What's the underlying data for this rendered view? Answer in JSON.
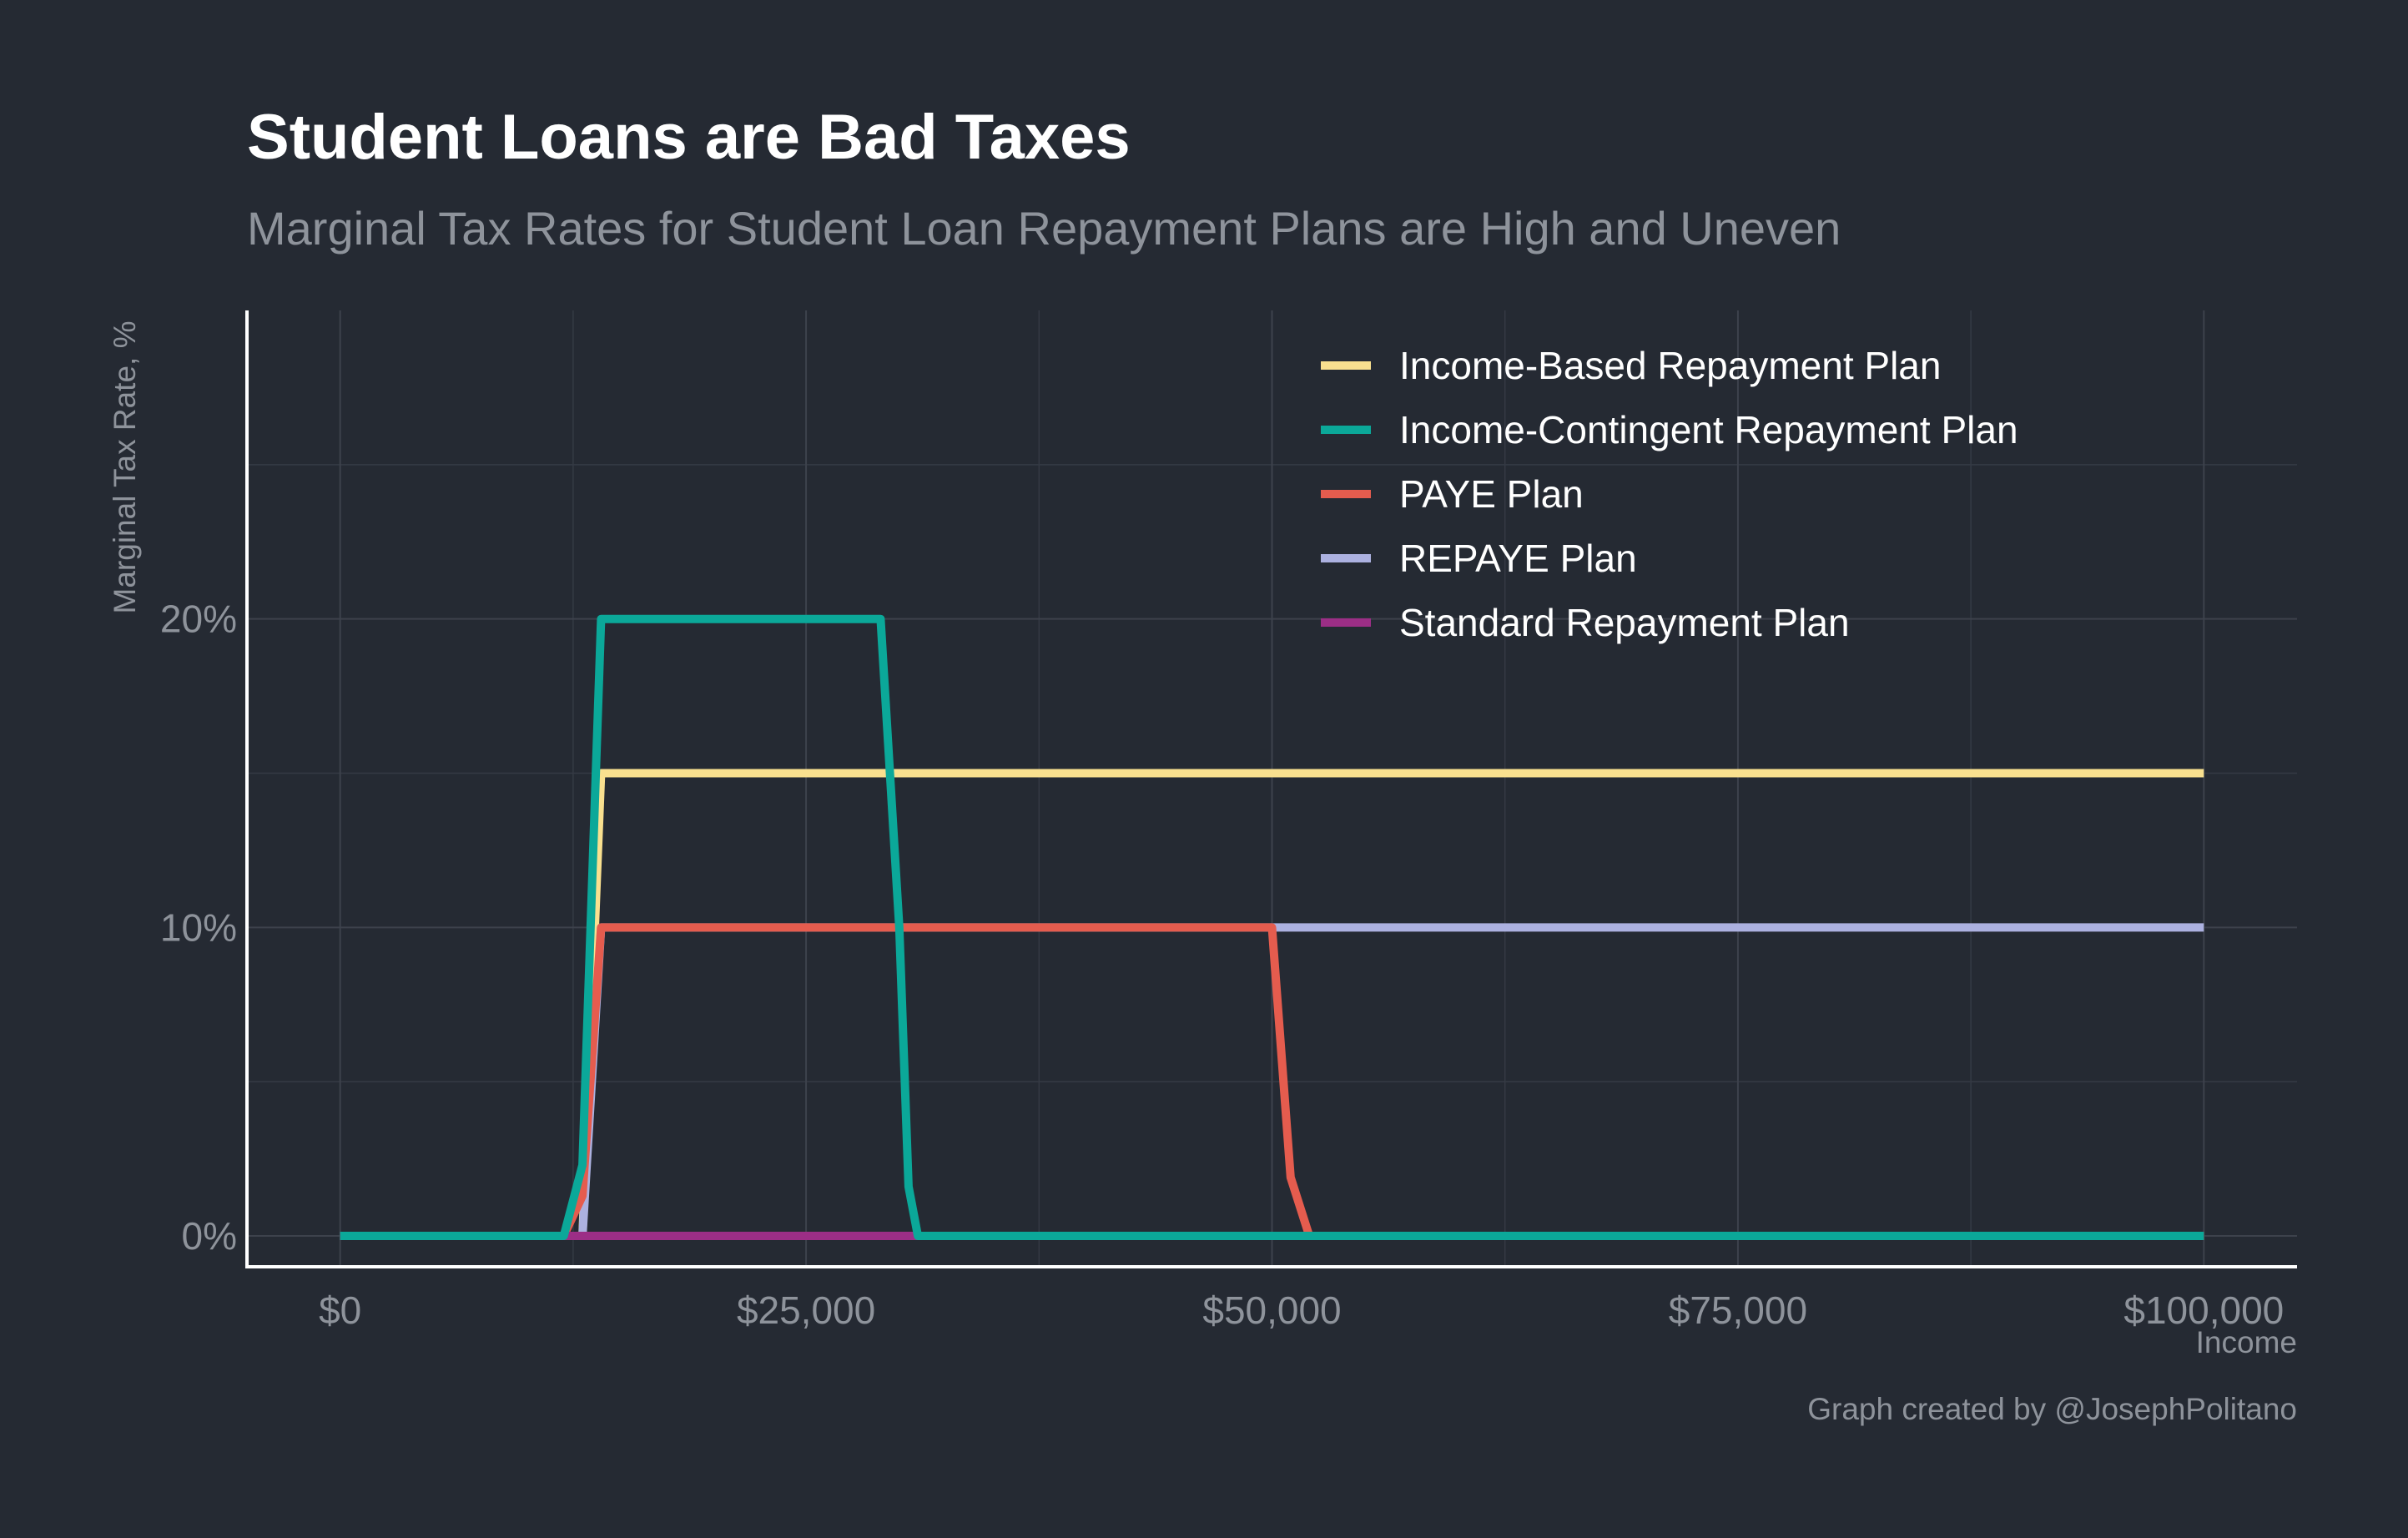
{
  "chart_data": {
    "type": "line",
    "title": "Student Loans are Bad Taxes",
    "subtitle": "Marginal Tax Rates for Student Loan Repayment Plans are High and Uneven",
    "xlabel": "Income",
    "ylabel": "Marginal Tax Rate, %",
    "caption": "Graph created by @JosephPolitano",
    "xlim": [
      -5000,
      105000
    ],
    "ylim": [
      -1,
      30
    ],
    "x_ticks": [
      {
        "value": 0,
        "label": "$0"
      },
      {
        "value": 25000,
        "label": "$25,000"
      },
      {
        "value": 50000,
        "label": "$50,000"
      },
      {
        "value": 75000,
        "label": "$75,000"
      },
      {
        "value": 100000,
        "label": "$100,000"
      }
    ],
    "y_ticks": [
      {
        "value": 0,
        "label": "0%"
      },
      {
        "value": 10,
        "label": "10%"
      },
      {
        "value": 20,
        "label": "20%"
      }
    ],
    "x_minor_grid": [
      12500,
      37500,
      62500,
      87500
    ],
    "y_minor_grid": [
      5,
      15,
      25
    ],
    "grid": true,
    "legend_position": "top-right",
    "series": [
      {
        "name": "Income-Based Repayment Plan",
        "color": "#f9e08f",
        "points": [
          [
            0,
            0
          ],
          [
            12000,
            0
          ],
          [
            13000,
            0
          ],
          [
            14000,
            15
          ],
          [
            100000,
            15
          ]
        ]
      },
      {
        "name": "REPAYE Plan",
        "color": "#acb1e0",
        "points": [
          [
            0,
            0
          ],
          [
            12000,
            0
          ],
          [
            13000,
            0
          ],
          [
            14000,
            10
          ],
          [
            100000,
            10
          ]
        ]
      },
      {
        "name": "PAYE Plan",
        "color": "#e55c4e",
        "points": [
          [
            0,
            0
          ],
          [
            12000,
            0
          ],
          [
            13000,
            1.3
          ],
          [
            14000,
            10
          ],
          [
            50000,
            10
          ],
          [
            51000,
            1.9
          ],
          [
            52000,
            0
          ],
          [
            100000,
            0
          ]
        ]
      },
      {
        "name": "Standard Repayment Plan",
        "color": "#9c2e86",
        "points": [
          [
            0,
            0
          ],
          [
            31000,
            0
          ]
        ]
      },
      {
        "name": "Income-Contingent Repayment Plan",
        "color": "#0ba899",
        "points": [
          [
            0,
            0
          ],
          [
            12000,
            0
          ],
          [
            13000,
            2.3
          ],
          [
            14000,
            20
          ],
          [
            29000,
            20
          ],
          [
            30000,
            10
          ],
          [
            30500,
            1.6
          ],
          [
            31000,
            0
          ],
          [
            100000,
            0
          ]
        ]
      }
    ],
    "legend_order": [
      "Income-Based Repayment Plan",
      "Income-Contingent Repayment Plan",
      "PAYE Plan",
      "REPAYE Plan",
      "Standard Repayment Plan"
    ]
  }
}
